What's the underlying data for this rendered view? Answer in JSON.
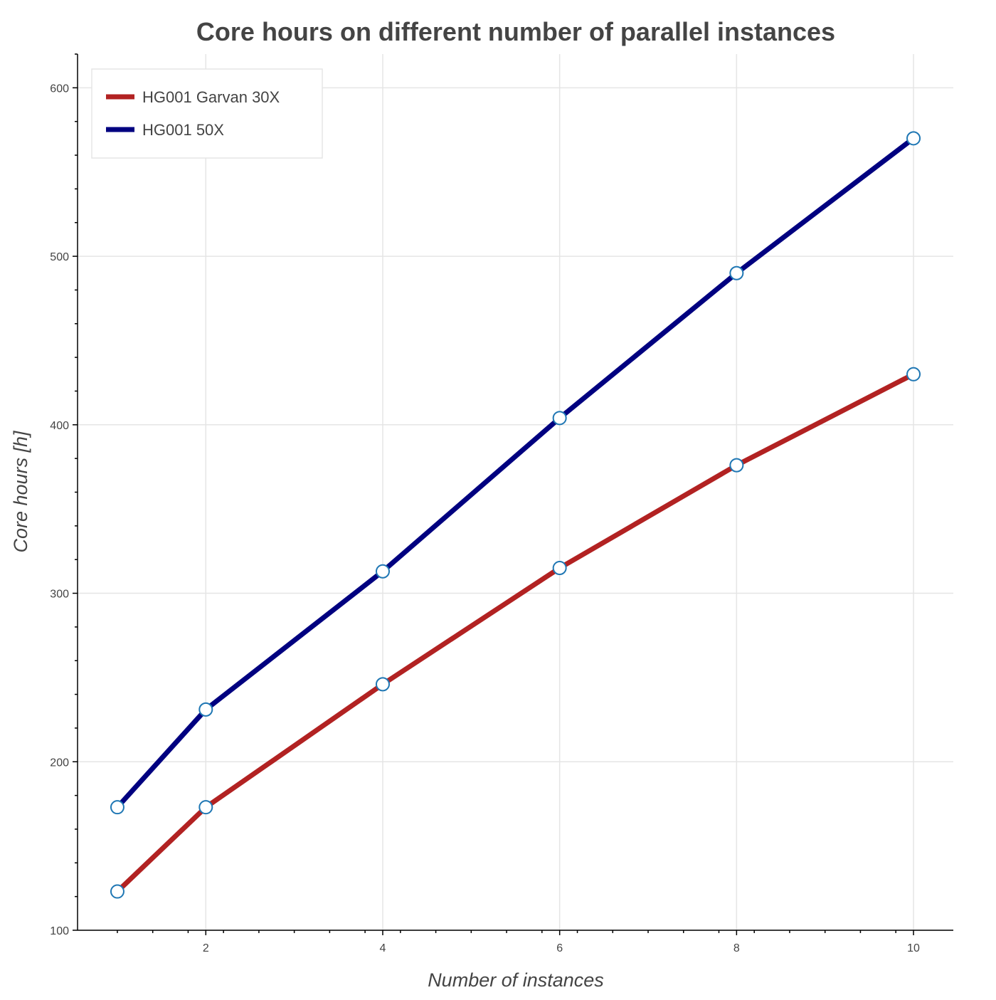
{
  "chart_data": {
    "type": "line",
    "title": "Core hours on different number of parallel instances",
    "xlabel": "Number of instances",
    "ylabel": "Core hours [h]",
    "xlim": [
      0.55,
      10.45
    ],
    "ylim": [
      100,
      620
    ],
    "x_ticks": [
      2,
      4,
      6,
      8,
      10
    ],
    "y_ticks": [
      100,
      200,
      300,
      400,
      500,
      600
    ],
    "grid": true,
    "legend_position": "top-left",
    "x": [
      1,
      2,
      4,
      6,
      8,
      10
    ],
    "series": [
      {
        "name": "HG001 Garvan 30X",
        "color": "#b22222",
        "values": [
          123,
          173,
          246,
          315,
          376,
          430
        ]
      },
      {
        "name": "HG001 50X",
        "color": "#000080",
        "values": [
          173,
          231,
          313,
          404,
          490,
          570
        ]
      }
    ],
    "marker": {
      "shape": "circle",
      "fill": "#ffffff",
      "stroke": "#1f77b4"
    }
  }
}
